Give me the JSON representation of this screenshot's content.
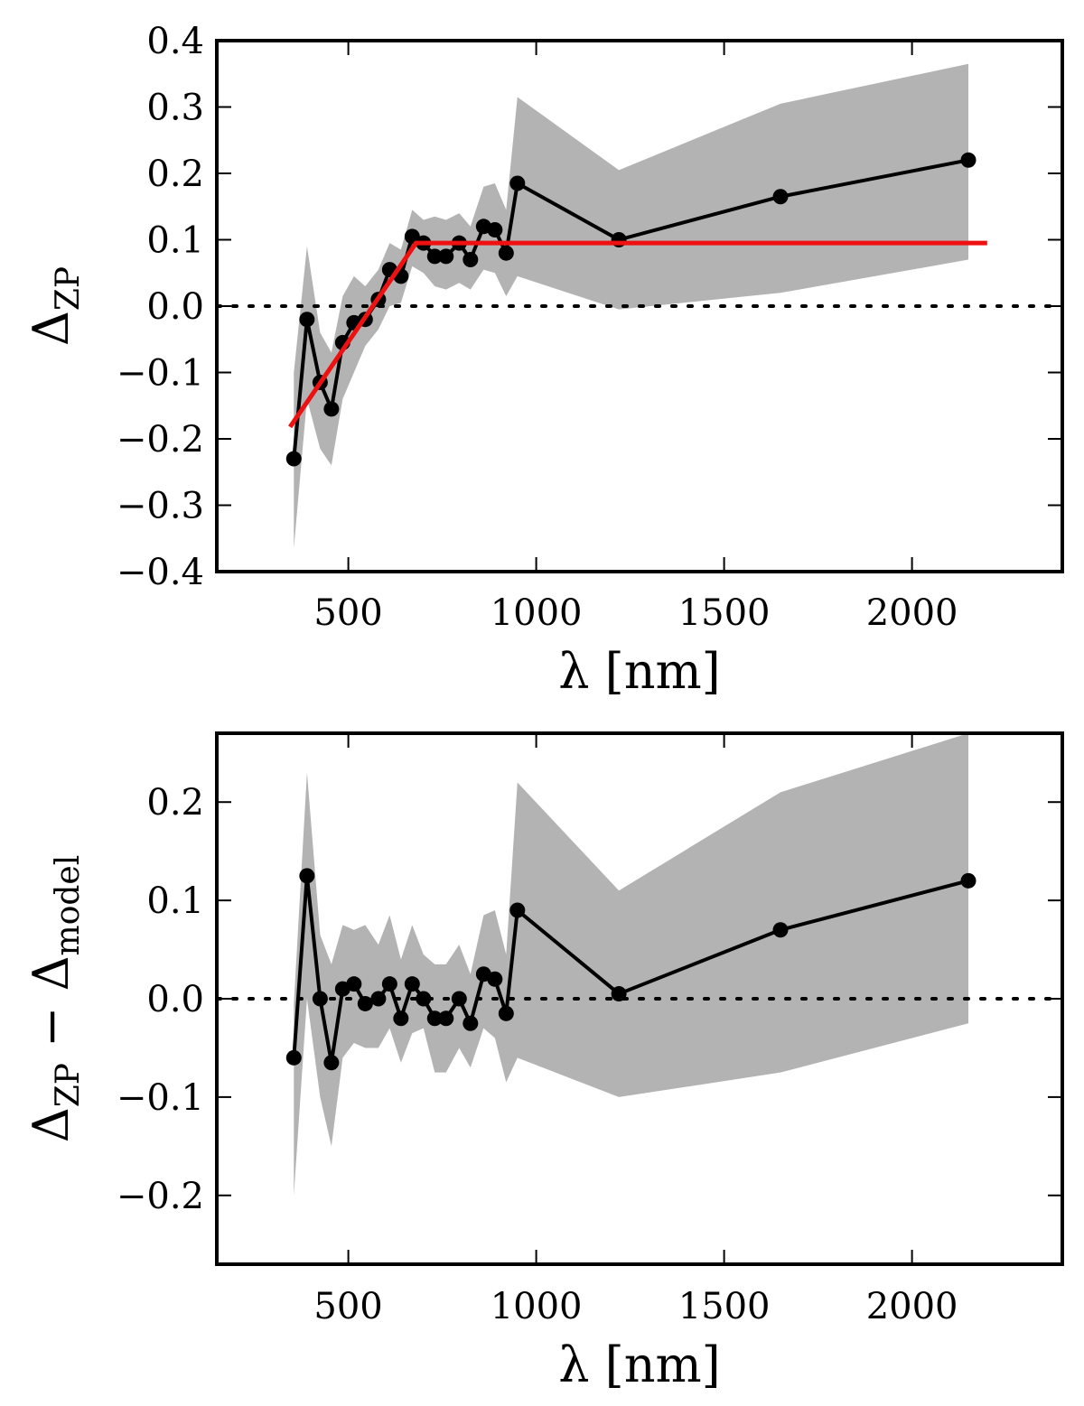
{
  "chart_data": [
    {
      "type": "line",
      "xlabel": "λ [nm]",
      "ylabel": {
        "main": "Δ",
        "sub": "ZP"
      },
      "xlim": [
        150,
        2400
      ],
      "ylim": [
        -0.4,
        0.4
      ],
      "xticks": [
        500,
        1000,
        1500,
        2000
      ],
      "yticks": [
        -0.4,
        -0.3,
        -0.2,
        -0.1,
        0.0,
        0.1,
        0.2,
        0.3,
        0.4
      ],
      "ytick_labels": [
        "−0.4",
        "−0.3",
        "−0.2",
        "−0.1",
        "0.0",
        "0.1",
        "0.2",
        "0.3",
        "0.4"
      ],
      "grid": false,
      "reference_line": {
        "y": 0.0,
        "style": "dotted",
        "color": "#000000"
      },
      "series": [
        {
          "kind": "band",
          "color": "#b3b3b3",
          "x": [
            355,
            390,
            425,
            455,
            485,
            515,
            545,
            580,
            610,
            640,
            670,
            700,
            730,
            760,
            795,
            825,
            860,
            890,
            920,
            950,
            1220,
            1650,
            2150
          ],
          "lower": [
            -0.365,
            -0.14,
            -0.215,
            -0.24,
            -0.14,
            -0.1,
            -0.06,
            -0.035,
            0.0,
            0.005,
            0.06,
            0.05,
            0.03,
            0.025,
            0.035,
            0.025,
            0.055,
            0.05,
            0.015,
            0.045,
            -0.005,
            0.02,
            0.07
          ],
          "upper": [
            -0.1,
            0.09,
            -0.04,
            -0.07,
            0.015,
            0.045,
            0.03,
            0.055,
            0.095,
            0.085,
            0.145,
            0.13,
            0.135,
            0.13,
            0.14,
            0.12,
            0.18,
            0.185,
            0.145,
            0.315,
            0.205,
            0.305,
            0.365
          ]
        },
        {
          "kind": "line-markers",
          "color": "#000000",
          "x": [
            355,
            390,
            425,
            455,
            485,
            515,
            545,
            580,
            610,
            640,
            670,
            700,
            730,
            760,
            795,
            825,
            860,
            890,
            920,
            950,
            1220,
            1650,
            2150
          ],
          "y": [
            -0.23,
            -0.02,
            -0.115,
            -0.155,
            -0.055,
            -0.025,
            -0.02,
            0.01,
            0.055,
            0.045,
            0.105,
            0.095,
            0.075,
            0.075,
            0.095,
            0.07,
            0.12,
            0.115,
            0.08,
            0.185,
            0.1,
            0.165,
            0.22
          ]
        },
        {
          "kind": "line",
          "color": "#ee1111",
          "x": [
            345,
            680,
            2200
          ],
          "y": [
            -0.182,
            0.095,
            0.095
          ]
        }
      ]
    },
    {
      "type": "line",
      "xlabel": "λ [nm]",
      "ylabel": {
        "main": "Δ",
        "sub": "ZP",
        "mid": " − Δ",
        "sub2": "model"
      },
      "xlim": [
        150,
        2400
      ],
      "ylim": [
        -0.27,
        0.27
      ],
      "xticks": [
        500,
        1000,
        1500,
        2000
      ],
      "yticks": [
        -0.2,
        -0.1,
        0.0,
        0.1,
        0.2
      ],
      "ytick_labels": [
        "−0.2",
        "−0.1",
        "0.0",
        "0.1",
        "0.2"
      ],
      "grid": false,
      "reference_line": {
        "y": 0.0,
        "style": "dotted",
        "color": "#000000"
      },
      "series": [
        {
          "kind": "band",
          "color": "#b3b3b3",
          "x": [
            355,
            390,
            425,
            455,
            485,
            515,
            545,
            580,
            610,
            640,
            670,
            700,
            730,
            760,
            795,
            825,
            860,
            890,
            920,
            950,
            1220,
            1650,
            2150
          ],
          "lower": [
            -0.2,
            0.0,
            -0.1,
            -0.15,
            -0.06,
            -0.045,
            -0.05,
            -0.05,
            -0.03,
            -0.065,
            -0.035,
            -0.03,
            -0.075,
            -0.075,
            -0.05,
            -0.07,
            -0.03,
            -0.04,
            -0.085,
            -0.06,
            -0.1,
            -0.075,
            -0.025
          ],
          "upper": [
            -0.005,
            0.23,
            0.065,
            0.035,
            0.075,
            0.07,
            0.075,
            0.055,
            0.085,
            0.04,
            0.075,
            0.045,
            0.035,
            0.035,
            0.055,
            0.025,
            0.085,
            0.09,
            0.045,
            0.22,
            0.11,
            0.21,
            0.27
          ]
        },
        {
          "kind": "line-markers",
          "color": "#000000",
          "x": [
            355,
            390,
            425,
            455,
            485,
            515,
            545,
            580,
            610,
            640,
            670,
            700,
            730,
            760,
            795,
            825,
            860,
            890,
            920,
            950,
            1220,
            1650,
            2150
          ],
          "y": [
            -0.06,
            0.125,
            0.0,
            -0.065,
            0.01,
            0.015,
            -0.005,
            0.0,
            0.015,
            -0.02,
            0.015,
            0.0,
            -0.02,
            -0.02,
            0.0,
            -0.025,
            0.025,
            0.02,
            -0.015,
            0.09,
            0.005,
            0.07,
            0.12
          ]
        }
      ]
    }
  ]
}
